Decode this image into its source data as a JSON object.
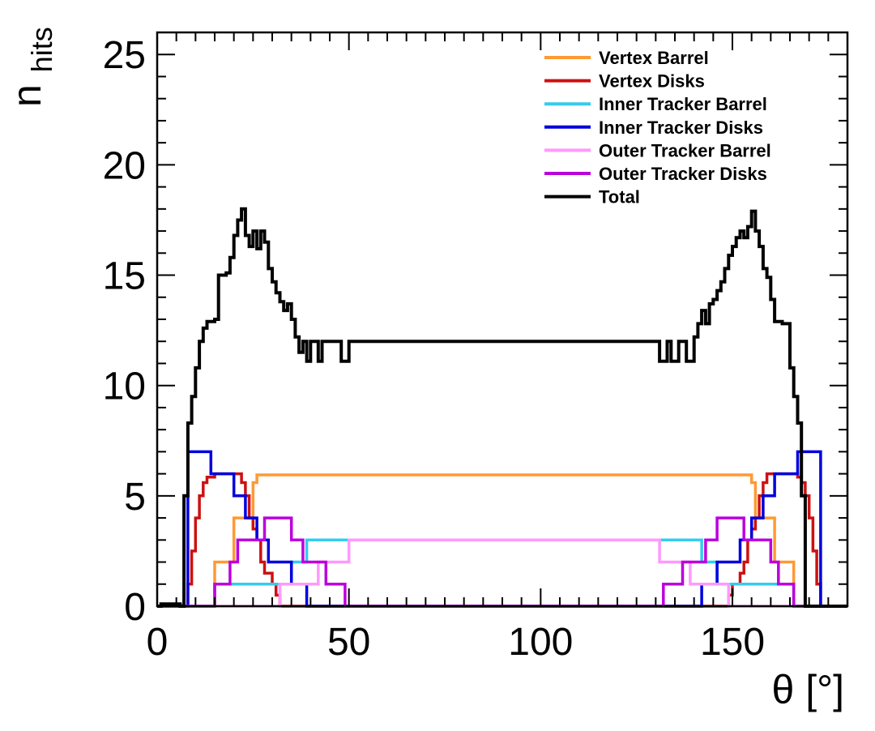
{
  "chart_data": {
    "type": "line",
    "step": true,
    "xlabel": "θ [°]",
    "ylabel_main": "n",
    "ylabel_sub": "hits",
    "xlim": [
      0,
      180
    ],
    "ylim": [
      0,
      26
    ],
    "xticks": [
      0,
      50,
      100,
      150
    ],
    "yticks": [
      0,
      5,
      10,
      15,
      20,
      25
    ],
    "grid": false,
    "legend_position": "top-right",
    "series": [
      {
        "name": "Vertex Barrel",
        "color": "#ff9933",
        "points": [
          [
            0,
            0
          ],
          [
            14,
            0
          ],
          [
            15,
            2
          ],
          [
            19,
            2
          ],
          [
            20,
            4
          ],
          [
            24,
            4
          ],
          [
            25,
            5.6
          ],
          [
            26,
            5.95
          ],
          [
            154,
            5.95
          ],
          [
            155,
            5.6
          ],
          [
            156,
            4
          ],
          [
            160,
            4
          ],
          [
            161,
            2
          ],
          [
            165,
            2
          ],
          [
            166,
            0
          ],
          [
            180,
            0
          ]
        ]
      },
      {
        "name": "Vertex Disks",
        "color": "#cc1111",
        "points": [
          [
            0,
            0
          ],
          [
            7,
            0
          ],
          [
            8,
            1
          ],
          [
            9,
            2.5
          ],
          [
            10,
            4
          ],
          [
            11,
            5
          ],
          [
            12,
            5.6
          ],
          [
            13,
            5.85
          ],
          [
            15,
            6
          ],
          [
            21,
            6
          ],
          [
            22,
            5.6
          ],
          [
            23,
            5
          ],
          [
            24,
            4
          ],
          [
            25,
            3.5
          ],
          [
            26,
            3
          ],
          [
            27,
            2
          ],
          [
            28,
            1.5
          ],
          [
            30,
            1
          ],
          [
            31,
            0.5
          ],
          [
            32,
            0
          ],
          [
            148,
            0
          ],
          [
            149,
            0.5
          ],
          [
            150,
            1
          ],
          [
            152,
            1.5
          ],
          [
            153,
            2
          ],
          [
            154,
            3
          ],
          [
            155,
            3.5
          ],
          [
            156,
            4
          ],
          [
            157,
            5
          ],
          [
            158,
            5.6
          ],
          [
            159,
            6
          ],
          [
            165,
            6
          ],
          [
            167,
            5.85
          ],
          [
            168,
            5.6
          ],
          [
            169,
            5
          ],
          [
            170,
            4
          ],
          [
            171,
            2.5
          ],
          [
            172,
            1
          ],
          [
            173,
            0
          ],
          [
            180,
            0
          ]
        ]
      },
      {
        "name": "Inner Tracker Barrel",
        "color": "#33ccee",
        "points": [
          [
            0,
            0
          ],
          [
            14,
            0
          ],
          [
            15,
            1
          ],
          [
            34,
            1
          ],
          [
            35,
            2
          ],
          [
            38,
            2
          ],
          [
            39,
            3
          ],
          [
            141,
            3
          ],
          [
            142,
            2
          ],
          [
            145,
            2
          ],
          [
            146,
            1
          ],
          [
            165,
            1
          ],
          [
            166,
            0
          ],
          [
            180,
            0
          ]
        ]
      },
      {
        "name": "Inner Tracker Disks",
        "color": "#0000dd",
        "points": [
          [
            0,
            0
          ],
          [
            7,
            0
          ],
          [
            8,
            7
          ],
          [
            13,
            7
          ],
          [
            14,
            6
          ],
          [
            19,
            6
          ],
          [
            20,
            5
          ],
          [
            22,
            5
          ],
          [
            23,
            4
          ],
          [
            25,
            4
          ],
          [
            26,
            3
          ],
          [
            28,
            3
          ],
          [
            29,
            2
          ],
          [
            34,
            2
          ],
          [
            35,
            1
          ],
          [
            38,
            1
          ],
          [
            39,
            0
          ],
          [
            141,
            0
          ],
          [
            142,
            1
          ],
          [
            145,
            1
          ],
          [
            146,
            2
          ],
          [
            151,
            2
          ],
          [
            152,
            3
          ],
          [
            154,
            3
          ],
          [
            155,
            4
          ],
          [
            157,
            4
          ],
          [
            158,
            5
          ],
          [
            160,
            5
          ],
          [
            161,
            6
          ],
          [
            166,
            6
          ],
          [
            167,
            7
          ],
          [
            172,
            7
          ],
          [
            173,
            0
          ],
          [
            180,
            0
          ]
        ]
      },
      {
        "name": "Outer Tracker Barrel",
        "color": "#ff99ff",
        "points": [
          [
            0,
            0
          ],
          [
            31,
            0
          ],
          [
            32,
            1
          ],
          [
            41,
            1
          ],
          [
            42,
            2
          ],
          [
            49,
            2
          ],
          [
            50,
            3
          ],
          [
            130,
            3
          ],
          [
            131,
            2
          ],
          [
            138,
            2
          ],
          [
            139,
            1
          ],
          [
            148,
            1
          ],
          [
            149,
            0
          ],
          [
            180,
            0
          ]
        ]
      },
      {
        "name": "Outer Tracker Disks",
        "color": "#bb00dd",
        "points": [
          [
            0,
            0
          ],
          [
            14,
            0
          ],
          [
            15,
            1
          ],
          [
            18,
            1
          ],
          [
            19,
            2
          ],
          [
            20,
            2
          ],
          [
            21,
            3
          ],
          [
            27,
            3
          ],
          [
            28,
            4
          ],
          [
            34,
            4
          ],
          [
            35,
            3
          ],
          [
            37,
            3
          ],
          [
            38,
            2
          ],
          [
            43,
            2
          ],
          [
            44,
            1
          ],
          [
            48,
            1
          ],
          [
            49,
            0
          ],
          [
            131,
            0
          ],
          [
            132,
            1
          ],
          [
            136,
            1
          ],
          [
            137,
            2
          ],
          [
            142,
            2
          ],
          [
            143,
            3
          ],
          [
            145,
            3
          ],
          [
            146,
            4
          ],
          [
            152,
            4
          ],
          [
            153,
            3
          ],
          [
            159,
            3
          ],
          [
            160,
            2
          ],
          [
            161,
            2
          ],
          [
            162,
            1
          ],
          [
            165,
            1
          ],
          [
            166,
            0
          ],
          [
            180,
            0
          ]
        ]
      },
      {
        "name": "Total",
        "color": "#000000",
        "points": [
          [
            0,
            0
          ],
          [
            1,
            0.1
          ],
          [
            5,
            0.1
          ],
          [
            6,
            0
          ],
          [
            7,
            5
          ],
          [
            8,
            8.3
          ],
          [
            9,
            9.5
          ],
          [
            10,
            10.8
          ],
          [
            11,
            12
          ],
          [
            12,
            12.6
          ],
          [
            13,
            12.9
          ],
          [
            15,
            13
          ],
          [
            16,
            15
          ],
          [
            18,
            15.1
          ],
          [
            19,
            15.8
          ],
          [
            20,
            16.8
          ],
          [
            21,
            17.5
          ],
          [
            22,
            18
          ],
          [
            23,
            16.8
          ],
          [
            24,
            16.3
          ],
          [
            25,
            17
          ],
          [
            26,
            16.2
          ],
          [
            27,
            17
          ],
          [
            28,
            16.5
          ],
          [
            29,
            15.3
          ],
          [
            30,
            14.7
          ],
          [
            31,
            14.2
          ],
          [
            32,
            13.8
          ],
          [
            33,
            13.4
          ],
          [
            34,
            13.7
          ],
          [
            35,
            13
          ],
          [
            36,
            12.2
          ],
          [
            37,
            11.5
          ],
          [
            38,
            12
          ],
          [
            39,
            11.1
          ],
          [
            40,
            12
          ],
          [
            42,
            11.1
          ],
          [
            43,
            12
          ],
          [
            48,
            11.1
          ],
          [
            50,
            12
          ],
          [
            130,
            12
          ],
          [
            131,
            11.1
          ],
          [
            133,
            12
          ],
          [
            134,
            11.1
          ],
          [
            136,
            12
          ],
          [
            138,
            11.1
          ],
          [
            140,
            12.2
          ],
          [
            141,
            12.8
          ],
          [
            142,
            13.4
          ],
          [
            143,
            12.8
          ],
          [
            144,
            13.7
          ],
          [
            145,
            13.9
          ],
          [
            146,
            14.3
          ],
          [
            147,
            14.7
          ],
          [
            148,
            15.3
          ],
          [
            149,
            15.9
          ],
          [
            150,
            16.3
          ],
          [
            151,
            16.7
          ],
          [
            152,
            17
          ],
          [
            153,
            16.7
          ],
          [
            154,
            17.2
          ],
          [
            155,
            17.9
          ],
          [
            156,
            17
          ],
          [
            157,
            16.3
          ],
          [
            158,
            15.3
          ],
          [
            159,
            14.9
          ],
          [
            160,
            13.9
          ],
          [
            161,
            12.9
          ],
          [
            163,
            12.8
          ],
          [
            165,
            10.8
          ],
          [
            166,
            9.5
          ],
          [
            167,
            8.3
          ],
          [
            168,
            5
          ],
          [
            169,
            0
          ],
          [
            180,
            0
          ]
        ]
      }
    ]
  }
}
